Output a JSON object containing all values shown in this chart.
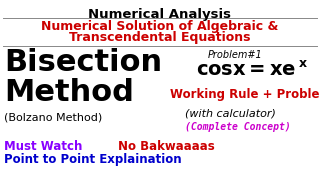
{
  "bg_color": "#ffffff",
  "title_top": "Numerical Analysis",
  "title_top_color": "#000000",
  "subtitle_line1": "Numerical Solution of Algebraic &",
  "subtitle_line2": "Transcendental Equations",
  "subtitle_color": "#cc0000",
  "line_color": "#888888",
  "bisection_line1": "Bisection",
  "bisection_line2": "Method",
  "bisection_color": "#000000",
  "bolzano_text": "(Bolzano Method)",
  "bolzano_color": "#000000",
  "problem_label": "Problem#1",
  "problem_label_color": "#000000",
  "working_rule_text": "Working Rule + Problem",
  "working_rule_color": "#cc0000",
  "with_calc_text": "(with calculator)",
  "with_calc_color": "#000000",
  "complete_concept_text": "(Complete Concept)",
  "complete_concept_color": "#cc00cc",
  "must_watch_text": "Must Watch",
  "must_watch_color": "#8800ff",
  "no_bak_text": "No Bakwaaaas",
  "no_bak_color": "#cc0000",
  "point_text": "Point to Point Explaination",
  "point_color": "#0000cc"
}
